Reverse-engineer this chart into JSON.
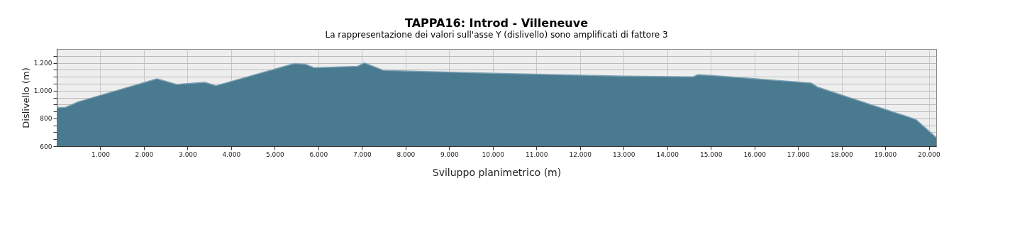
{
  "chart_data": {
    "type": "area",
    "title": "TAPPA16: Introd - Villeneuve",
    "subtitle": "La rappresentazione dei valori sull'asse Y (dislivello) sono amplificati di fattore 3",
    "xlabel": "Sviluppo planimetrico (m)",
    "ylabel": "Dislivello (m)",
    "x": [
      0,
      200,
      500,
      2300,
      2750,
      3400,
      3650,
      5450,
      5700,
      5900,
      6900,
      7050,
      7500,
      10000,
      13000,
      14600,
      14700,
      15000,
      17300,
      17450,
      19700,
      20170
    ],
    "series": [
      {
        "color": "#4a7a8f",
        "values": [
          877,
          880,
          920,
          1085,
          1045,
          1060,
          1035,
          1195,
          1190,
          1165,
          1175,
          1200,
          1145,
          1125,
          1105,
          1100,
          1115,
          1110,
          1055,
          1025,
          793,
          662
        ]
      }
    ],
    "xlim": [
      0,
      20170
    ],
    "ylim": [
      600,
      1300
    ],
    "xticks": [
      {
        "value": 1000,
        "label": "1.000"
      },
      {
        "value": 2000,
        "label": "2.000"
      },
      {
        "value": 3000,
        "label": "3.000"
      },
      {
        "value": 4000,
        "label": "4.000"
      },
      {
        "value": 5000,
        "label": "5.000"
      },
      {
        "value": 6000,
        "label": "6.000"
      },
      {
        "value": 7000,
        "label": "7.000"
      },
      {
        "value": 8000,
        "label": "8.000"
      },
      {
        "value": 9000,
        "label": "9.000"
      },
      {
        "value": 10000,
        "label": "10.000"
      },
      {
        "value": 11000,
        "label": "11.000"
      },
      {
        "value": 12000,
        "label": "12.000"
      },
      {
        "value": 13000,
        "label": "13.000"
      },
      {
        "value": 14000,
        "label": "14.000"
      },
      {
        "value": 15000,
        "label": "15.000"
      },
      {
        "value": 16000,
        "label": "16.000"
      },
      {
        "value": 17000,
        "label": "17.000"
      },
      {
        "value": 18000,
        "label": "18.000"
      },
      {
        "value": 19000,
        "label": "19.000"
      },
      {
        "value": 20000,
        "label": "20.000"
      }
    ],
    "yticks": [
      600,
      {
        "value": 650,
        "label": null
      },
      {
        "value": 700,
        "label": null
      },
      {
        "value": 750,
        "label": null
      },
      800,
      {
        "value": 850,
        "label": null
      },
      {
        "value": 900,
        "label": null
      },
      {
        "value": 950,
        "label": null
      },
      {
        "value": 1000,
        "label": "1.000"
      },
      {
        "value": 1050,
        "label": null
      },
      {
        "value": 1100,
        "label": null
      },
      {
        "value": 1150,
        "label": null
      },
      {
        "value": 1200,
        "label": "1.200"
      },
      {
        "value": 1250,
        "label": null
      }
    ],
    "grid": true
  }
}
